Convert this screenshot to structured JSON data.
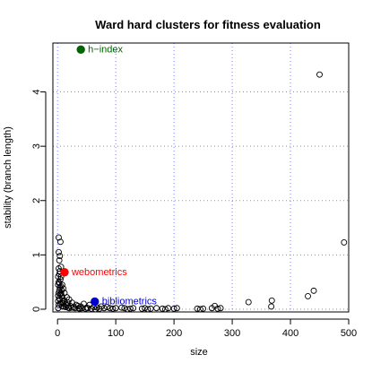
{
  "chart_data": {
    "type": "scatter",
    "title": "Ward hard clusters for fitness evaluation",
    "xlabel": "size",
    "ylabel": "stability (branch length)",
    "xlim": [
      -8,
      500
    ],
    "ylim": [
      -0.05,
      4.9
    ],
    "xticks": [
      0,
      100,
      200,
      300,
      400,
      500
    ],
    "yticks": [
      0,
      1,
      2,
      3,
      4
    ],
    "grid": true,
    "grid_color": "#8080ff",
    "point_color": "#000000",
    "points": [
      [
        450,
        4.32
      ],
      [
        492,
        1.23
      ],
      [
        440,
        0.34
      ],
      [
        430,
        0.24
      ],
      [
        368,
        0.16
      ],
      [
        367,
        0.05
      ],
      [
        328,
        0.13
      ],
      [
        280,
        0.02
      ],
      [
        275,
        0.01
      ],
      [
        270,
        0.06
      ],
      [
        265,
        0.02
      ],
      [
        250,
        0.01
      ],
      [
        245,
        0.0
      ],
      [
        240,
        0.01
      ],
      [
        205,
        0.02
      ],
      [
        200,
        0.01
      ],
      [
        190,
        0.02
      ],
      [
        185,
        0.0
      ],
      [
        180,
        0.01
      ],
      [
        170,
        0.02
      ],
      [
        160,
        0.01
      ],
      [
        155,
        0.0
      ],
      [
        150,
        0.02
      ],
      [
        145,
        0.01
      ],
      [
        130,
        0.02
      ],
      [
        125,
        0.01
      ],
      [
        120,
        0.0
      ],
      [
        115,
        0.02
      ],
      [
        110,
        0.03
      ],
      [
        100,
        0.02
      ],
      [
        95,
        0.01
      ],
      [
        90,
        0.02
      ],
      [
        85,
        0.04
      ],
      [
        80,
        0.02
      ],
      [
        75,
        0.05
      ],
      [
        72,
        0.01
      ],
      [
        68,
        0.03
      ],
      [
        55,
        0.08
      ],
      [
        50,
        0.03
      ],
      [
        45,
        0.1
      ],
      [
        40,
        0.05
      ],
      [
        36,
        0.02
      ],
      [
        32,
        0.08
      ],
      [
        28,
        0.04
      ],
      [
        25,
        0.12
      ],
      [
        22,
        0.06
      ],
      [
        20,
        0.18
      ],
      [
        18,
        0.03
      ],
      [
        16,
        0.22
      ],
      [
        14,
        0.09
      ],
      [
        12,
        0.3
      ],
      [
        11,
        0.05
      ],
      [
        10,
        0.38
      ],
      [
        9,
        0.14
      ],
      [
        8,
        0.45
      ],
      [
        7,
        0.25
      ],
      [
        6,
        0.6
      ],
      [
        5,
        0.1
      ],
      [
        4,
        0.7
      ],
      [
        3,
        0.35
      ],
      [
        2,
        0.5
      ],
      [
        1,
        0.02
      ],
      [
        1,
        0.15
      ],
      [
        2,
        0.08
      ],
      [
        3,
        0.2
      ],
      [
        4,
        0.4
      ],
      [
        5,
        0.55
      ],
      [
        6,
        0.3
      ],
      [
        7,
        0.12
      ],
      [
        8,
        0.05
      ],
      [
        3,
        0.9
      ],
      [
        2,
        1.05
      ],
      [
        4,
        0.98
      ],
      [
        2,
        1.32
      ],
      [
        5,
        1.24
      ],
      [
        6,
        0.78
      ],
      [
        1,
        0.6
      ],
      [
        2,
        0.75
      ],
      [
        3,
        0.65
      ],
      [
        1,
        0.45
      ],
      [
        2,
        0.3
      ],
      [
        3,
        0.48
      ],
      [
        1,
        0.25
      ],
      [
        4,
        0.18
      ],
      [
        5,
        0.28
      ],
      [
        6,
        0.42
      ],
      [
        7,
        0.35
      ],
      [
        9,
        0.2
      ],
      [
        10,
        0.1
      ],
      [
        12,
        0.15
      ],
      [
        14,
        0.04
      ],
      [
        16,
        0.07
      ],
      [
        18,
        0.12
      ],
      [
        20,
        0.02
      ],
      [
        24,
        0.03
      ],
      [
        30,
        0.02
      ],
      [
        35,
        0.06
      ],
      [
        38,
        0.01
      ],
      [
        42,
        0.02
      ],
      [
        48,
        0.01
      ],
      [
        52,
        0.02
      ],
      [
        58,
        0.01
      ],
      [
        62,
        0.04
      ],
      [
        65,
        0.0
      ]
    ],
    "annotations": [
      {
        "label": "h−index",
        "x": 40,
        "y": 4.78,
        "color": "#006400"
      },
      {
        "label": "webometrics",
        "x": 12,
        "y": 0.68,
        "color": "#ff0000"
      },
      {
        "label": "bibliometrics",
        "x": 64,
        "y": 0.14,
        "color": "#0000cd"
      }
    ]
  }
}
